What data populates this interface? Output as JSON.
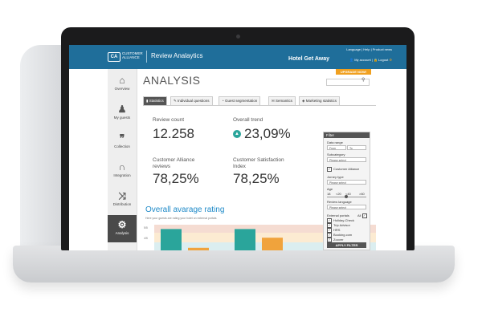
{
  "header": {
    "logo_mark": "CA",
    "logo_text": "CUSTOMER ALLIANCE",
    "app_title": "Review Analaytics",
    "top_links": "Language | Help | Product news",
    "hotel_name": "Hotel Get Away",
    "my_account": "My account",
    "logout": "Logout",
    "upgrade": "UPGRADE NOW!"
  },
  "sidebar": {
    "items": [
      {
        "label": "Overview",
        "icon": "⌂"
      },
      {
        "label": "My guests",
        "icon": "♟"
      },
      {
        "label": "Collection",
        "icon": "❞"
      },
      {
        "label": "Integration",
        "icon": "∩"
      },
      {
        "label": "Distribution",
        "icon": "⤨"
      },
      {
        "label": "Analysis",
        "icon": "⚙"
      }
    ]
  },
  "page": {
    "title": "ANALYSIS",
    "tabs": [
      "Statistics",
      "Individual questions",
      "Guest segmentation",
      "Semantics",
      "Marketing statistics"
    ]
  },
  "kpis": {
    "review_count_label": "Review count",
    "review_count_value": "12.258",
    "overall_trend_label": "Overall trend",
    "overall_trend_value": "23,09%",
    "ca_reviews_label_1": "Customer Alliance",
    "ca_reviews_label_2": "reviews",
    "ca_reviews_value": "78,25%",
    "csi_label_1": "Customer Satisfaction",
    "csi_label_2": "Index",
    "csi_value": "78,25%"
  },
  "rating": {
    "title": "Overall avarage rating",
    "subtitle": "Here your guests are rating your hotel on external portals"
  },
  "chart_data": {
    "type": "bar",
    "y_ticks": [
      "5/5",
      "4/5"
    ],
    "colors": [
      "#2aa59b",
      "#f0a33c"
    ],
    "band_colors": [
      "#f5dcd2",
      "#fcebd2",
      "#dbeef0"
    ],
    "bars": [
      {
        "color": "#2aa59b",
        "value": 0.85
      },
      {
        "color": "#f0a33c",
        "value": 0.2
      },
      {
        "color": "#2aa59b",
        "value": 0.85
      },
      {
        "color": "#f0a33c",
        "value": 0.55
      }
    ]
  },
  "filter": {
    "title": "Filter",
    "date_range_label": "Data range",
    "date_from": "From",
    "date_to": "To",
    "subcategory_label": "Subcategory",
    "select_placeholder": "Please select",
    "ca_check": "Customer Alliance",
    "journey_label": "Jorney type",
    "age_label": "Age",
    "age_ticks": [
      "18",
      "<20",
      "<40",
      ">60"
    ],
    "review_language_label": "Review language",
    "external_portals_label": "External portals",
    "all_label": "All",
    "portals": [
      "Holiday-Check",
      "Trip Advisor",
      "HRS",
      "Booking.com",
      "Zoover"
    ],
    "apply": "APPLY FILTER"
  }
}
